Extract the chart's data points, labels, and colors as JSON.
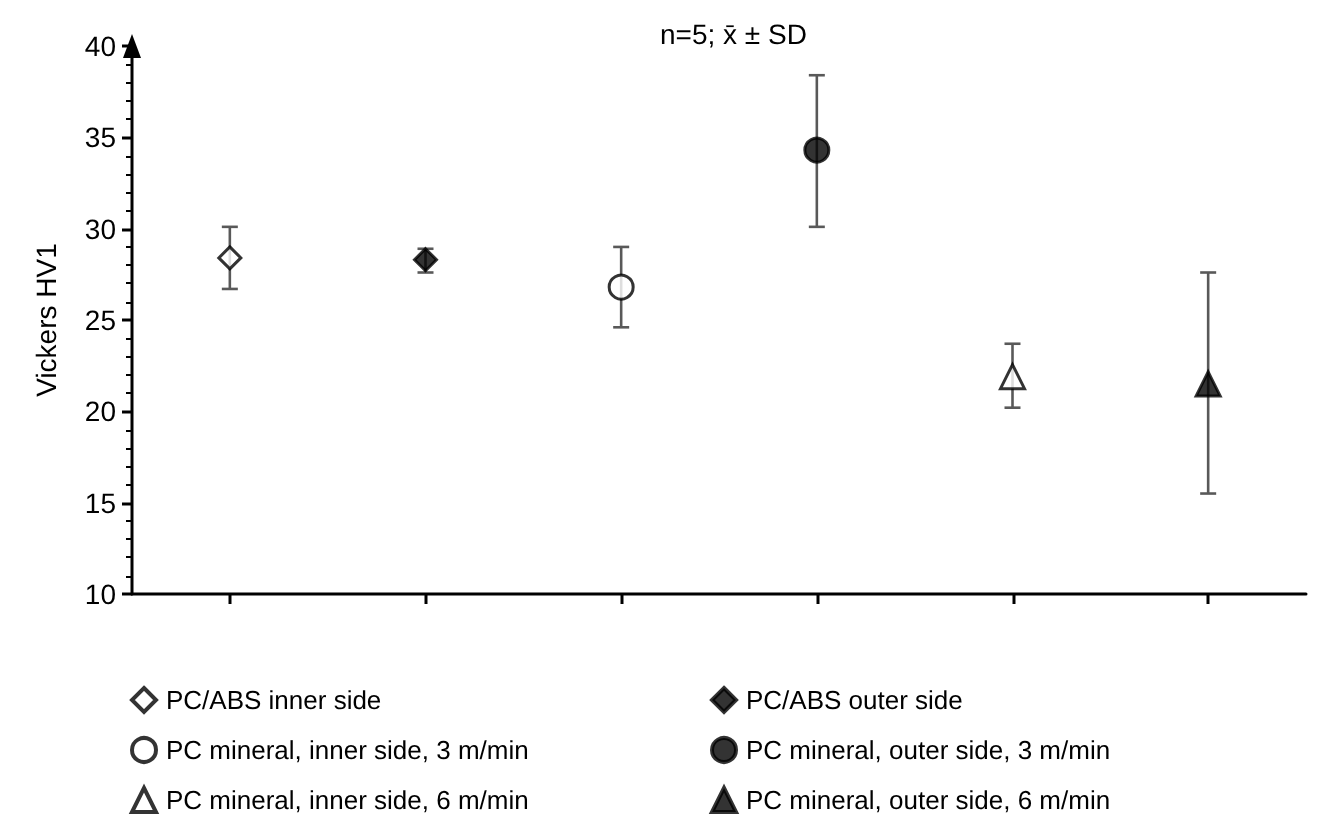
{
  "chart_data": {
    "type": "scatter",
    "ylabel": "Vickers HV1",
    "annotations": [
      "n=5; x̄ ± SD"
    ],
    "categories": [
      null,
      null,
      null,
      null,
      null,
      null
    ],
    "ylim": [
      10,
      40
    ],
    "yticks": [
      10,
      15,
      20,
      25,
      30,
      35,
      40
    ],
    "grid": false,
    "legend": "bottom",
    "series": [
      {
        "name": "PC/ABS inner side",
        "color": "#ffffff",
        "marker": "diamond",
        "values": [
          28.4,
          null,
          null,
          null,
          null,
          null
        ],
        "errors": [
          [
            26.7,
            30.1
          ],
          null,
          null,
          null,
          null,
          null
        ]
      },
      {
        "name": "PC/ABS outer side",
        "color": "#000000",
        "marker": "diamond",
        "values": [
          null,
          28.3,
          null,
          null,
          null,
          null
        ],
        "errors": [
          null,
          [
            27.6,
            28.9
          ],
          null,
          null,
          null,
          null
        ]
      },
      {
        "name": "PC mineral, inner side, 3 m/min",
        "color": "#ffffff",
        "marker": "circle",
        "values": [
          null,
          null,
          26.8,
          null,
          null,
          null
        ],
        "errors": [
          null,
          null,
          [
            24.6,
            29.0
          ],
          null,
          null,
          null
        ]
      },
      {
        "name": "PC mineral, outer side, 3 m/min",
        "color": "#000000",
        "marker": "circle",
        "values": [
          null,
          null,
          null,
          34.3,
          null,
          null
        ],
        "errors": [
          null,
          null,
          null,
          [
            30.1,
            38.4
          ],
          null,
          null
        ]
      },
      {
        "name": "PC mineral, inner side, 6 m/min",
        "color": "#ffffff",
        "marker": "triangle",
        "values": [
          null,
          null,
          null,
          null,
          21.9,
          null
        ],
        "errors": [
          null,
          null,
          null,
          null,
          [
            20.2,
            23.7
          ],
          null
        ]
      },
      {
        "name": "PC mineral, outer side, 6 m/min",
        "color": "#000000",
        "marker": "triangle",
        "values": [
          null,
          null,
          null,
          null,
          null,
          21.5
        ],
        "errors": [
          null,
          null,
          null,
          null,
          null,
          [
            15.5,
            27.6
          ]
        ]
      }
    ]
  }
}
